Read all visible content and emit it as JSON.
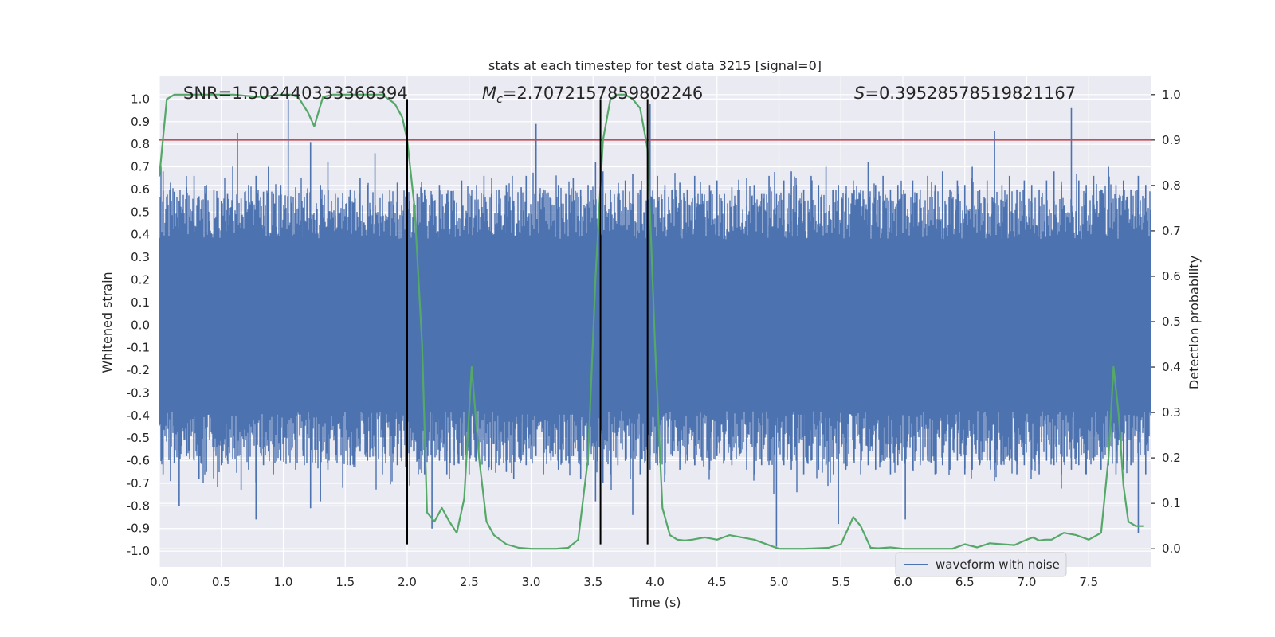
{
  "chart_data": {
    "type": "line",
    "title": "stats at each timestep for test data 3215 [signal=0]",
    "xlabel": "Time (s)",
    "ylabel": "Whitened strain",
    "y2label": "Detection probability",
    "xlim": [
      0.0,
      8.0
    ],
    "ylim": [
      -1.07,
      1.1
    ],
    "y2lim": [
      -0.04,
      1.04
    ],
    "x_ticks": [
      "0.0",
      "0.5",
      "1.0",
      "1.5",
      "2.0",
      "2.5",
      "3.0",
      "3.5",
      "4.0",
      "4.5",
      "5.0",
      "5.5",
      "6.0",
      "6.5",
      "7.0",
      "7.5"
    ],
    "y_ticks": [
      "1.0",
      "0.9",
      "0.8",
      "0.7",
      "0.6",
      "0.5",
      "0.4",
      "0.3",
      "0.2",
      "0.1",
      "0.0",
      "-0.1",
      "-0.2",
      "-0.3",
      "-0.4",
      "-0.5",
      "-0.6",
      "-0.7",
      "-0.8",
      "-0.9",
      "-1.0"
    ],
    "y2_ticks": [
      "1.0",
      "0.9",
      "0.8",
      "0.7",
      "0.6",
      "0.5",
      "0.4",
      "0.3",
      "0.2",
      "0.1",
      "0.0"
    ],
    "annotations": {
      "snr": "SNR=1.502440333366394",
      "mc_symbol": "M",
      "mc_sub": "c",
      "mc_value": "=2.7072157859802246",
      "s_symbol": "S",
      "s_value": "=0.39528578519821167"
    },
    "threshold": {
      "y2": 0.9,
      "color": "#c44e52"
    },
    "vertical_lines": [
      2.0,
      3.56,
      3.94
    ],
    "legend": {
      "label": "waveform with noise",
      "position": "bottom-right"
    },
    "series": [
      {
        "name": "waveform with noise",
        "axis": "left",
        "color": "#4c72b0",
        "core_amplitude": 0.38,
        "spikes": [
          {
            "x": 0.03,
            "hi": 0.68,
            "lo": -0.66
          },
          {
            "x": 0.09,
            "hi": 0.63,
            "lo": -0.69
          },
          {
            "x": 0.12,
            "hi": 0.59,
            "lo": -0.61
          },
          {
            "x": 0.16,
            "hi": 0.55,
            "lo": -0.8
          },
          {
            "x": 0.22,
            "hi": 0.61,
            "lo": -0.58
          },
          {
            "x": 0.28,
            "hi": 0.66,
            "lo": -0.6
          },
          {
            "x": 0.32,
            "hi": 0.57,
            "lo": -0.68
          },
          {
            "x": 0.38,
            "hi": 0.62,
            "lo": -0.65
          },
          {
            "x": 0.44,
            "hi": 0.6,
            "lo": -0.56
          },
          {
            "x": 0.5,
            "hi": 0.55,
            "lo": -0.62
          },
          {
            "x": 0.55,
            "hi": 0.58,
            "lo": -0.6
          },
          {
            "x": 0.63,
            "hi": 0.85,
            "lo": -0.58
          },
          {
            "x": 0.66,
            "hi": 0.56,
            "lo": -0.73
          },
          {
            "x": 0.72,
            "hi": 0.62,
            "lo": -0.64
          },
          {
            "x": 0.78,
            "hi": 0.66,
            "lo": -0.86
          },
          {
            "x": 0.84,
            "hi": 0.59,
            "lo": -0.62
          },
          {
            "x": 0.88,
            "hi": 0.7,
            "lo": -0.56
          },
          {
            "x": 0.92,
            "hi": 0.58,
            "lo": -0.66
          },
          {
            "x": 0.98,
            "hi": 0.62,
            "lo": -0.6
          },
          {
            "x": 1.04,
            "hi": 1.0,
            "lo": -0.55
          },
          {
            "x": 1.1,
            "hi": 0.61,
            "lo": -0.64
          },
          {
            "x": 1.16,
            "hi": 0.52,
            "lo": -0.58
          },
          {
            "x": 1.22,
            "hi": 0.81,
            "lo": -0.81
          },
          {
            "x": 1.3,
            "hi": 0.62,
            "lo": -0.78
          },
          {
            "x": 1.36,
            "hi": 0.72,
            "lo": -0.64
          },
          {
            "x": 1.42,
            "hi": 0.58,
            "lo": -0.6
          },
          {
            "x": 1.48,
            "hi": 0.55,
            "lo": -0.72
          },
          {
            "x": 1.54,
            "hi": 0.6,
            "lo": -0.62
          },
          {
            "x": 1.58,
            "hi": 0.56,
            "lo": -0.63
          },
          {
            "x": 1.62,
            "hi": 0.65,
            "lo": -0.56
          },
          {
            "x": 1.68,
            "hi": 0.62,
            "lo": -0.6
          },
          {
            "x": 1.74,
            "hi": 0.76,
            "lo": -0.58
          },
          {
            "x": 1.8,
            "hi": 0.58,
            "lo": -0.66
          },
          {
            "x": 1.86,
            "hi": 0.6,
            "lo": -0.58
          },
          {
            "x": 1.92,
            "hi": 0.63,
            "lo": -0.62
          },
          {
            "x": 2.02,
            "hi": 0.55,
            "lo": -0.71
          },
          {
            "x": 2.08,
            "hi": 0.58,
            "lo": -0.6
          },
          {
            "x": 2.14,
            "hi": 0.6,
            "lo": -0.66
          },
          {
            "x": 2.2,
            "hi": 0.56,
            "lo": -0.9
          },
          {
            "x": 2.26,
            "hi": 0.62,
            "lo": -0.6
          },
          {
            "x": 2.32,
            "hi": 0.58,
            "lo": -0.66
          },
          {
            "x": 2.38,
            "hi": 0.55,
            "lo": -0.62
          },
          {
            "x": 2.44,
            "hi": 0.64,
            "lo": -0.58
          },
          {
            "x": 2.5,
            "hi": 0.58,
            "lo": -0.66
          },
          {
            "x": 2.56,
            "hi": 0.62,
            "lo": -0.6
          },
          {
            "x": 2.62,
            "hi": 0.66,
            "lo": -0.58
          },
          {
            "x": 2.68,
            "hi": 0.58,
            "lo": -0.64
          },
          {
            "x": 2.74,
            "hi": 0.6,
            "lo": -0.62
          },
          {
            "x": 2.8,
            "hi": 0.62,
            "lo": -0.65
          },
          {
            "x": 2.86,
            "hi": 0.55,
            "lo": -0.68
          },
          {
            "x": 2.92,
            "hi": 0.61,
            "lo": -0.6
          },
          {
            "x": 2.96,
            "hi": 0.66,
            "lo": -0.62
          },
          {
            "x": 3.04,
            "hi": 0.89,
            "lo": -0.58
          },
          {
            "x": 3.1,
            "hi": 0.6,
            "lo": -0.66
          },
          {
            "x": 3.16,
            "hi": 0.56,
            "lo": -0.6
          },
          {
            "x": 3.22,
            "hi": 0.62,
            "lo": -0.64
          },
          {
            "x": 3.28,
            "hi": 0.58,
            "lo": -0.6
          },
          {
            "x": 3.34,
            "hi": 0.65,
            "lo": -0.58
          },
          {
            "x": 3.4,
            "hi": 0.6,
            "lo": -0.68
          },
          {
            "x": 3.46,
            "hi": 0.62,
            "lo": -0.62
          },
          {
            "x": 3.52,
            "hi": 0.72,
            "lo": -0.78
          },
          {
            "x": 3.58,
            "hi": 0.68,
            "lo": -0.7
          },
          {
            "x": 3.64,
            "hi": 0.6,
            "lo": -0.66
          },
          {
            "x": 3.7,
            "hi": 0.58,
            "lo": -0.62
          },
          {
            "x": 3.76,
            "hi": 0.64,
            "lo": -0.6
          },
          {
            "x": 3.82,
            "hi": 0.67,
            "lo": -0.84
          },
          {
            "x": 3.88,
            "hi": 0.6,
            "lo": -0.66
          },
          {
            "x": 3.96,
            "hi": 0.98,
            "lo": -0.64
          },
          {
            "x": 4.02,
            "hi": 0.66,
            "lo": -0.62
          },
          {
            "x": 4.08,
            "hi": 0.62,
            "lo": -0.66
          },
          {
            "x": 4.14,
            "hi": 0.6,
            "lo": -0.58
          },
          {
            "x": 4.2,
            "hi": 0.63,
            "lo": -0.64
          },
          {
            "x": 4.26,
            "hi": 0.6,
            "lo": -0.6
          },
          {
            "x": 4.32,
            "hi": 0.66,
            "lo": -0.62
          },
          {
            "x": 4.38,
            "hi": 0.58,
            "lo": -0.6
          },
          {
            "x": 4.44,
            "hi": 0.62,
            "lo": -0.64
          },
          {
            "x": 4.5,
            "hi": 0.64,
            "lo": -0.58
          },
          {
            "x": 4.56,
            "hi": 0.58,
            "lo": -0.6
          },
          {
            "x": 4.62,
            "hi": 0.61,
            "lo": -0.62
          },
          {
            "x": 4.68,
            "hi": 0.6,
            "lo": -0.58
          },
          {
            "x": 4.74,
            "hi": 0.65,
            "lo": -0.64
          },
          {
            "x": 4.8,
            "hi": 0.62,
            "lo": -0.66
          },
          {
            "x": 4.86,
            "hi": 0.58,
            "lo": -0.62
          },
          {
            "x": 4.92,
            "hi": 0.66,
            "lo": -0.6
          },
          {
            "x": 4.98,
            "hi": 0.58,
            "lo": -0.98
          },
          {
            "x": 5.04,
            "hi": 0.64,
            "lo": -0.62
          },
          {
            "x": 5.1,
            "hi": 0.68,
            "lo": -0.64
          },
          {
            "x": 5.14,
            "hi": 0.62,
            "lo": -0.6
          },
          {
            "x": 5.2,
            "hi": 0.6,
            "lo": -0.66
          },
          {
            "x": 5.26,
            "hi": 0.66,
            "lo": -0.6
          },
          {
            "x": 5.32,
            "hi": 0.62,
            "lo": -0.64
          },
          {
            "x": 5.38,
            "hi": 0.7,
            "lo": -0.62
          },
          {
            "x": 5.44,
            "hi": 0.6,
            "lo": -0.66
          },
          {
            "x": 5.48,
            "hi": 0.62,
            "lo": -0.88
          },
          {
            "x": 5.54,
            "hi": 0.58,
            "lo": -0.64
          },
          {
            "x": 5.6,
            "hi": 0.64,
            "lo": -0.6
          },
          {
            "x": 5.66,
            "hi": 0.6,
            "lo": -0.66
          },
          {
            "x": 5.72,
            "hi": 0.72,
            "lo": -0.62
          },
          {
            "x": 5.78,
            "hi": 0.62,
            "lo": -0.64
          },
          {
            "x": 5.84,
            "hi": 0.66,
            "lo": -0.6
          },
          {
            "x": 5.9,
            "hi": 0.6,
            "lo": -0.66
          },
          {
            "x": 5.96,
            "hi": 0.62,
            "lo": -0.62
          },
          {
            "x": 6.02,
            "hi": 0.58,
            "lo": -0.86
          },
          {
            "x": 6.08,
            "hi": 0.64,
            "lo": -0.64
          },
          {
            "x": 6.14,
            "hi": 0.6,
            "lo": -0.62
          },
          {
            "x": 6.2,
            "hi": 0.66,
            "lo": -0.6
          },
          {
            "x": 6.26,
            "hi": 0.62,
            "lo": -0.66
          },
          {
            "x": 6.32,
            "hi": 0.68,
            "lo": -0.62
          },
          {
            "x": 6.38,
            "hi": 0.6,
            "lo": -0.64
          },
          {
            "x": 6.44,
            "hi": 0.64,
            "lo": -0.6
          },
          {
            "x": 6.5,
            "hi": 0.62,
            "lo": -0.66
          },
          {
            "x": 6.56,
            "hi": 0.7,
            "lo": -0.64
          },
          {
            "x": 6.62,
            "hi": 0.6,
            "lo": -0.62
          },
          {
            "x": 6.68,
            "hi": 0.64,
            "lo": -0.6
          },
          {
            "x": 6.74,
            "hi": 0.86,
            "lo": -0.64
          },
          {
            "x": 6.8,
            "hi": 0.62,
            "lo": -0.62
          },
          {
            "x": 6.86,
            "hi": 0.66,
            "lo": -0.6
          },
          {
            "x": 6.92,
            "hi": 0.6,
            "lo": -0.66
          },
          {
            "x": 6.98,
            "hi": 0.64,
            "lo": -0.62
          },
          {
            "x": 7.04,
            "hi": 0.62,
            "lo": -0.64
          },
          {
            "x": 7.1,
            "hi": 0.6,
            "lo": -0.66
          },
          {
            "x": 7.16,
            "hi": 0.64,
            "lo": -0.6
          },
          {
            "x": 7.22,
            "hi": 0.68,
            "lo": -0.62
          },
          {
            "x": 7.28,
            "hi": 0.62,
            "lo": -0.66
          },
          {
            "x": 7.36,
            "hi": 0.96,
            "lo": -0.64
          },
          {
            "x": 7.42,
            "hi": 0.64,
            "lo": -0.62
          },
          {
            "x": 7.48,
            "hi": 0.62,
            "lo": -0.66
          },
          {
            "x": 7.54,
            "hi": 0.66,
            "lo": -0.6
          },
          {
            "x": 7.6,
            "hi": 0.6,
            "lo": -0.64
          },
          {
            "x": 7.66,
            "hi": 0.7,
            "lo": -0.62
          },
          {
            "x": 7.72,
            "hi": 0.62,
            "lo": -0.66
          },
          {
            "x": 7.78,
            "hi": 0.64,
            "lo": -0.64
          },
          {
            "x": 7.84,
            "hi": 0.6,
            "lo": -0.62
          },
          {
            "x": 7.9,
            "hi": 0.66,
            "lo": -0.92
          },
          {
            "x": 7.96,
            "hi": 0.62,
            "lo": -0.66
          }
        ]
      },
      {
        "name": "detection probability",
        "axis": "right",
        "color": "#55a868",
        "x": [
          0.0,
          0.06,
          0.12,
          0.2,
          0.4,
          0.6,
          0.8,
          1.0,
          1.06,
          1.12,
          1.2,
          1.25,
          1.32,
          1.4,
          1.6,
          1.8,
          1.9,
          1.96,
          2.0,
          2.06,
          2.12,
          2.16,
          2.22,
          2.28,
          2.34,
          2.4,
          2.46,
          2.52,
          2.58,
          2.64,
          2.7,
          2.8,
          2.9,
          3.0,
          3.1,
          3.2,
          3.3,
          3.38,
          3.46,
          3.52,
          3.58,
          3.64,
          3.7,
          3.76,
          3.82,
          3.88,
          3.94,
          4.0,
          4.06,
          4.12,
          4.18,
          4.24,
          4.3,
          4.4,
          4.5,
          4.6,
          4.7,
          4.8,
          5.0,
          5.2,
          5.4,
          5.5,
          5.6,
          5.66,
          5.74,
          5.8,
          5.9,
          6.0,
          6.2,
          6.4,
          6.5,
          6.6,
          6.7,
          6.8,
          6.9,
          7.0,
          7.05,
          7.1,
          7.15,
          7.2,
          7.3,
          7.4,
          7.5,
          7.6,
          7.66,
          7.7,
          7.74,
          7.78,
          7.82,
          7.88,
          7.94
        ],
        "values": [
          0.82,
          0.99,
          1.0,
          1.0,
          1.0,
          1.0,
          0.995,
          1.0,
          1.0,
          0.995,
          0.96,
          0.93,
          0.995,
          1.0,
          1.0,
          1.0,
          0.98,
          0.95,
          0.9,
          0.75,
          0.45,
          0.08,
          0.06,
          0.09,
          0.06,
          0.035,
          0.11,
          0.4,
          0.2,
          0.06,
          0.03,
          0.01,
          0.002,
          0.0,
          0.0,
          0.0,
          0.002,
          0.02,
          0.2,
          0.6,
          0.9,
          0.99,
          1.0,
          1.0,
          0.99,
          0.97,
          0.88,
          0.45,
          0.09,
          0.03,
          0.02,
          0.018,
          0.02,
          0.025,
          0.02,
          0.03,
          0.025,
          0.02,
          0.0,
          0.0,
          0.002,
          0.01,
          0.07,
          0.05,
          0.002,
          0.001,
          0.003,
          0.0,
          0.0,
          0.0,
          0.01,
          0.003,
          0.012,
          0.01,
          0.008,
          0.02,
          0.025,
          0.018,
          0.02,
          0.02,
          0.035,
          0.03,
          0.02,
          0.035,
          0.2,
          0.4,
          0.3,
          0.14,
          0.06,
          0.05,
          0.05
        ]
      }
    ]
  }
}
